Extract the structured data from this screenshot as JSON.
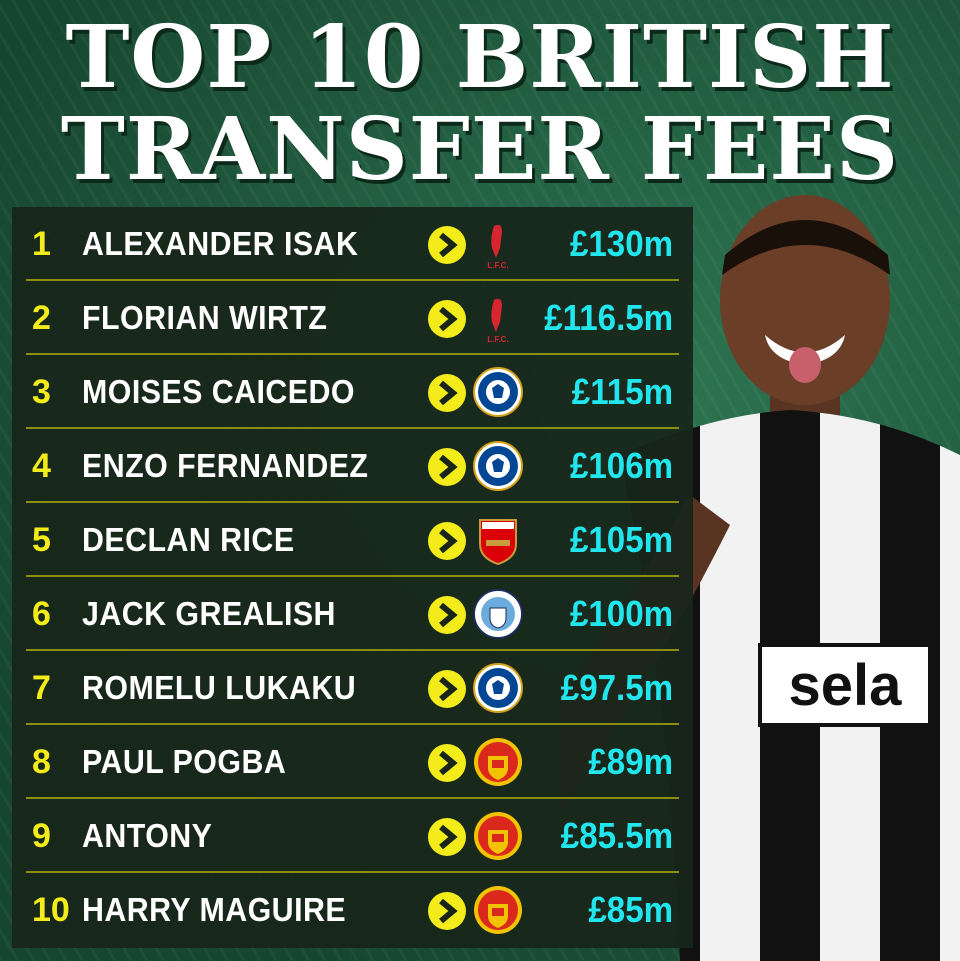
{
  "title": {
    "line1": "TOP 10 BRITISH",
    "line2": "TRANSFER FEES"
  },
  "colors": {
    "rank": "#f3ec1a",
    "name": "#ffffff",
    "fee": "#22e6ee",
    "arrow": "#f3ec1a",
    "divider": "#8a8f12"
  },
  "rows": [
    {
      "rank": "1",
      "name": "ALEXANDER ISAK",
      "club": "liverpool",
      "fee": "£130m"
    },
    {
      "rank": "2",
      "name": "FLORIAN WIRTZ",
      "club": "liverpool",
      "fee": "£116.5m"
    },
    {
      "rank": "3",
      "name": "MOISES CAICEDO",
      "club": "chelsea",
      "fee": "£115m"
    },
    {
      "rank": "4",
      "name": "ENZO FERNANDEZ",
      "club": "chelsea",
      "fee": "£106m"
    },
    {
      "rank": "5",
      "name": "DECLAN RICE",
      "club": "arsenal",
      "fee": "£105m"
    },
    {
      "rank": "6",
      "name": "JACK GREALISH",
      "club": "man-city",
      "fee": "£100m"
    },
    {
      "rank": "7",
      "name": "ROMELU LUKAKU",
      "club": "chelsea",
      "fee": "£97.5m"
    },
    {
      "rank": "8",
      "name": "PAUL POGBA",
      "club": "man-utd",
      "fee": "£89m"
    },
    {
      "rank": "9",
      "name": "ANTONY",
      "club": "man-utd",
      "fee": "£85.5m"
    },
    {
      "rank": "10",
      "name": "HARRY MAGUIRE",
      "club": "man-utd",
      "fee": "£85m"
    }
  ],
  "photo": {
    "shirt_sponsor": "sela"
  }
}
